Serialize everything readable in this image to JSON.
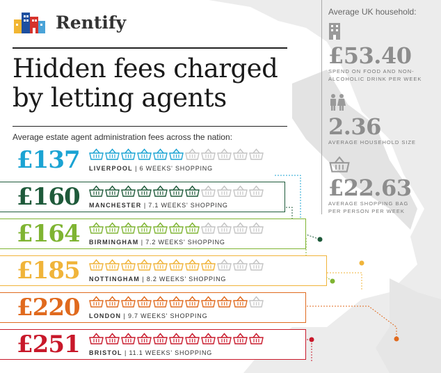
{
  "brand": {
    "name": "Rentify"
  },
  "title": "Hidden fees charged by letting agents",
  "subtitle": "Average estate agent administration fees across the nation:",
  "basket_total": 11,
  "rows": [
    {
      "amount": "£137",
      "city": "LIVERPOOL",
      "weeks_text": "6 WEEKS' SHOPPING",
      "filled": 6,
      "color": "#1aa3d3",
      "band": false
    },
    {
      "amount": "£160",
      "city": "MANCHESTER",
      "weeks_text": "7.1 WEEKS' SHOPPING",
      "filled": 7,
      "color": "#1e5a3a",
      "band": true
    },
    {
      "amount": "£164",
      "city": "BIRMINGHAM",
      "weeks_text": "7.2 WEEKS' SHOPPING",
      "filled": 7,
      "color": "#7fb432",
      "band": true
    },
    {
      "amount": "£185",
      "city": "NOTTINGHAM",
      "weeks_text": "8.2 WEEKS' SHOPPING",
      "filled": 8,
      "color": "#f0b43a",
      "band": true
    },
    {
      "amount": "£220",
      "city": "LONDON",
      "weeks_text": "9.7 WEEKS' SHOPPING",
      "filled": 10,
      "color": "#e06a1e",
      "band": true
    },
    {
      "amount": "£251",
      "city": "BRISTOL",
      "weeks_text": "11.1 WEEKS' SHOPPING",
      "filled": 11,
      "color": "#c8182a",
      "band": true
    }
  ],
  "side": {
    "heading": "Average UK household:",
    "stats": [
      {
        "icon": "building-icon",
        "value": "£53.40",
        "label": "SPEND ON FOOD AND NON-ALCOHOLIC DRINK PER WEEK"
      },
      {
        "icon": "people-icon",
        "value": "2.36",
        "label": "AVERAGE HOUSEHOLD SIZE"
      },
      {
        "icon": "shopping-basket-icon",
        "value": "£22.63",
        "label": "AVERAGE SHOPPING BAG PER PERSON PER WEEK"
      }
    ]
  },
  "colors": {
    "empty_basket": "#c4c4c4",
    "map": "#ececec",
    "side_text": "#8d8d8d"
  }
}
